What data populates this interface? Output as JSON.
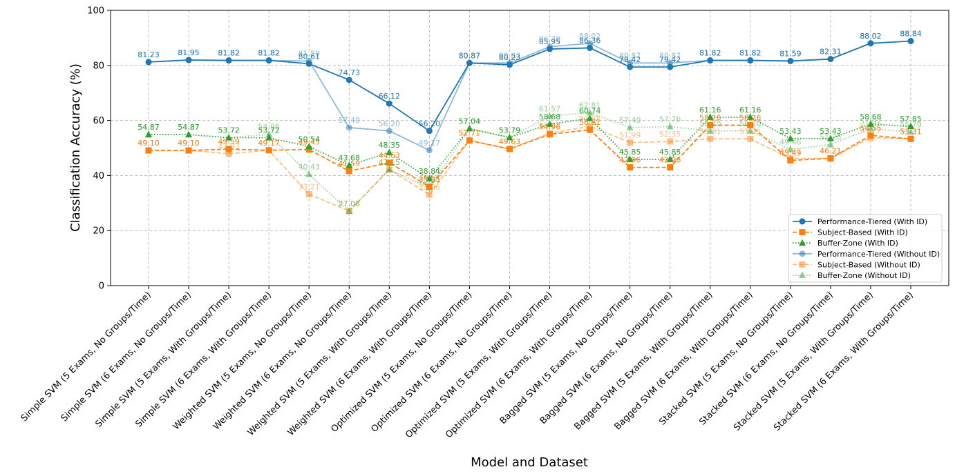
{
  "chart_data": {
    "type": "line",
    "xlabel": "Model and Dataset",
    "ylabel": "Classification Accuracy (%)",
    "ylim": [
      0,
      100
    ],
    "yticks": [
      0,
      20,
      40,
      60,
      80,
      100
    ],
    "grid": true,
    "legend_position": "bottom-right",
    "categories": [
      "Simple SVM (5 Exams, No Groups/Time)",
      "Simple SVM (6 Exams, No Groups/Time)",
      "Simple SVM (5 Exams, With Groups/Time)",
      "Simple SVM (6 Exams, With Groups/Time)",
      "Weighted SVM (5 Exams, No Groups/Time)",
      "Weighted SVM (6 Exams, No Groups/Time)",
      "Weighted SVM (5 Exams, With Groups/Time)",
      "Weighted SVM (6 Exams, With Groups/Time)",
      "Optimized SVM (5 Exams, No Groups/Time)",
      "Optimized SVM (6 Exams, No Groups/Time)",
      "Optimized SVM (5 Exams, With Groups/Time)",
      "Optimized SVM (6 Exams, With Groups/Time)",
      "Bagged SVM (5 Exams, No Groups/Time)",
      "Bagged SVM (6 Exams, No Groups/Time)",
      "Bagged SVM (5 Exams, With Groups/Time)",
      "Bagged SVM (6 Exams, With Groups/Time)",
      "Stacked SVM (5 Exams, No Groups/Time)",
      "Stacked SVM (6 Exams, No Groups/Time)",
      "Stacked SVM (5 Exams, With Groups/Time)",
      "Stacked SVM (6 Exams, With Groups/Time)"
    ],
    "series": [
      {
        "name": "Performance-Tiered (With ID)",
        "color": "#1f77b4",
        "marker": "circle",
        "dash": "solid",
        "faded": false,
        "values": [
          81.23,
          81.95,
          81.82,
          81.82,
          80.61,
          74.73,
          66.12,
          56.2,
          80.87,
          80.23,
          85.95,
          86.36,
          79.42,
          79.42,
          81.82,
          81.82,
          81.59,
          82.31,
          88.02,
          88.84
        ]
      },
      {
        "name": "Subject-Based (With ID)",
        "color": "#ff7f0e",
        "marker": "square",
        "dash": "dashed",
        "faded": false,
        "values": [
          49.1,
          49.1,
          49.59,
          49.17,
          49.45,
          41.59,
          44.63,
          35.95,
          52.71,
          49.63,
          54.96,
          56.61,
          42.96,
          42.96,
          58.26,
          58.26,
          45.49,
          46.21,
          54.55,
          53.31
        ]
      },
      {
        "name": "Buffer-Zone (With ID)",
        "color": "#2ca02c",
        "marker": "triangle",
        "dash": "dotted",
        "faded": false,
        "values": [
          54.87,
          54.87,
          53.72,
          53.72,
          50.54,
          43.68,
          48.35,
          38.84,
          57.04,
          53.79,
          58.68,
          60.74,
          45.85,
          45.85,
          61.16,
          61.16,
          53.43,
          53.43,
          58.68,
          57.85
        ]
      },
      {
        "name": "Performance-Tiered (Without ID)",
        "color": "#1f77b4",
        "marker": "circle",
        "dash": "solid",
        "faded": true,
        "values": [
          81.23,
          81.95,
          81.82,
          81.82,
          81.59,
          57.4,
          56.2,
          49.17,
          80.87,
          80.87,
          86.78,
          88.02,
          80.87,
          80.87,
          81.82,
          81.82,
          81.59,
          82.31,
          88.02,
          88.84
        ]
      },
      {
        "name": "Subject-Based (Without ID)",
        "color": "#ff7f0e",
        "marker": "square",
        "dash": "dashed",
        "faded": true,
        "values": [
          49.1,
          49.1,
          47.93,
          49.17,
          33.21,
          27.08,
          42.15,
          33.06,
          52.71,
          49.63,
          55.37,
          57.85,
          51.99,
          52.35,
          53.31,
          53.31,
          46.21,
          46.21,
          53.72,
          53.31
        ]
      },
      {
        "name": "Buffer-Zone (Without ID)",
        "color": "#2ca02c",
        "marker": "triangle",
        "dash": "dotted",
        "faded": true,
        "values": [
          54.87,
          54.87,
          53.72,
          54.96,
          40.43,
          27.08,
          42.15,
          35.54,
          57.04,
          53.79,
          61.57,
          62.81,
          57.4,
          57.76,
          56.2,
          56.2,
          49.46,
          51.26,
          57.02,
          55.79
        ]
      }
    ]
  }
}
